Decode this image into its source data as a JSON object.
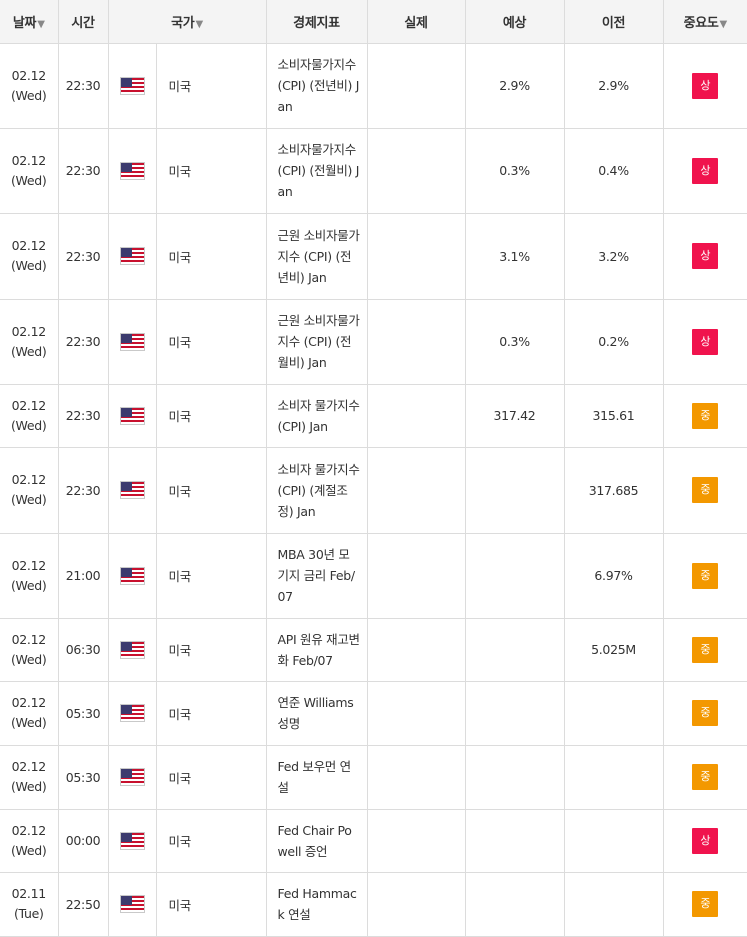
{
  "headers": {
    "date": "날짜",
    "time": "시간",
    "country": "국가",
    "indicator": "경제지표",
    "actual": "실제",
    "forecast": "예상",
    "previous": "이전",
    "importance": "중요도",
    "sort_icon": "▼"
  },
  "colors": {
    "high": "#f0134d",
    "medium": "#f39800"
  },
  "rows": [
    {
      "date": "02.12",
      "day": "(Wed)",
      "time": "22:30",
      "flag": "us-flag-icon",
      "country": "미국",
      "indicator": "소비자물가지수 (CPI) (전년비) Jan",
      "actual": "",
      "forecast": "2.9%",
      "previous": "2.9%",
      "importance": "상",
      "level": "high"
    },
    {
      "date": "02.12",
      "day": "(Wed)",
      "time": "22:30",
      "flag": "us-flag-icon",
      "country": "미국",
      "indicator": "소비자물가지수 (CPI) (전월비) Jan",
      "actual": "",
      "forecast": "0.3%",
      "previous": "0.4%",
      "importance": "상",
      "level": "high"
    },
    {
      "date": "02.12",
      "day": "(Wed)",
      "time": "22:30",
      "flag": "us-flag-icon",
      "country": "미국",
      "indicator": "근원 소비자물가지수 (CPI) (전년비) Jan",
      "actual": "",
      "forecast": "3.1%",
      "previous": "3.2%",
      "importance": "상",
      "level": "high"
    },
    {
      "date": "02.12",
      "day": "(Wed)",
      "time": "22:30",
      "flag": "us-flag-icon",
      "country": "미국",
      "indicator": "근원 소비자물가지수 (CPI) (전월비) Jan",
      "actual": "",
      "forecast": "0.3%",
      "previous": "0.2%",
      "importance": "상",
      "level": "high"
    },
    {
      "date": "02.12",
      "day": "(Wed)",
      "time": "22:30",
      "flag": "us-flag-icon",
      "country": "미국",
      "indicator": "소비자 물가지수(CPI) Jan",
      "actual": "",
      "forecast": "317.42",
      "previous": "315.61",
      "importance": "중",
      "level": "medium"
    },
    {
      "date": "02.12",
      "day": "(Wed)",
      "time": "22:30",
      "flag": "us-flag-icon",
      "country": "미국",
      "indicator": "소비자 물가지수(CPI) (계절조정) Jan",
      "actual": "",
      "forecast": "",
      "previous": "317.685",
      "importance": "중",
      "level": "medium"
    },
    {
      "date": "02.12",
      "day": "(Wed)",
      "time": "21:00",
      "flag": "us-flag-icon",
      "country": "미국",
      "indicator": "MBA 30년 모기지 금리 Feb/07",
      "actual": "",
      "forecast": "",
      "previous": "6.97%",
      "importance": "중",
      "level": "medium"
    },
    {
      "date": "02.12",
      "day": "(Wed)",
      "time": "06:30",
      "flag": "us-flag-icon",
      "country": "미국",
      "indicator": "API 원유 재고변화 Feb/07",
      "actual": "",
      "forecast": "",
      "previous": "5.025M",
      "importance": "중",
      "level": "medium"
    },
    {
      "date": "02.12",
      "day": "(Wed)",
      "time": "05:30",
      "flag": "us-flag-icon",
      "country": "미국",
      "indicator": "연준 Williams 성명",
      "actual": "",
      "forecast": "",
      "previous": "",
      "importance": "중",
      "level": "medium"
    },
    {
      "date": "02.12",
      "day": "(Wed)",
      "time": "05:30",
      "flag": "us-flag-icon",
      "country": "미국",
      "indicator": "Fed 보우먼 연설",
      "actual": "",
      "forecast": "",
      "previous": "",
      "importance": "중",
      "level": "medium"
    },
    {
      "date": "02.12",
      "day": "(Wed)",
      "time": "00:00",
      "flag": "us-flag-icon",
      "country": "미국",
      "indicator": "Fed Chair Powell 증언",
      "actual": "",
      "forecast": "",
      "previous": "",
      "importance": "상",
      "level": "high"
    },
    {
      "date": "02.11",
      "day": "(Tue)",
      "time": "22:50",
      "flag": "us-flag-icon",
      "country": "미국",
      "indicator": "Fed Hammack 연설",
      "actual": "",
      "forecast": "",
      "previous": "",
      "importance": "중",
      "level": "medium"
    }
  ]
}
